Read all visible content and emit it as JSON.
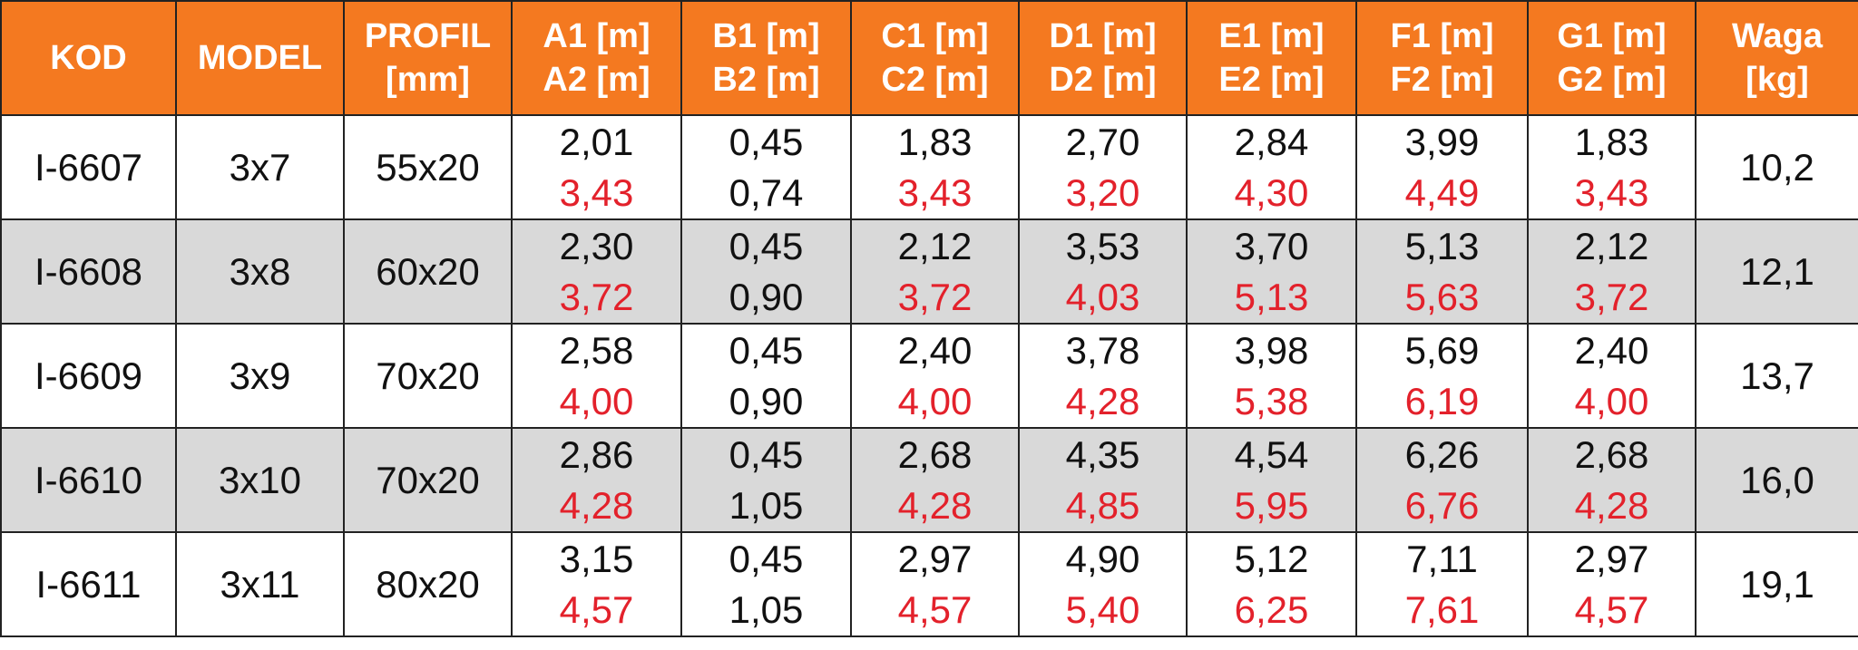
{
  "table": {
    "header": [
      [
        "KOD"
      ],
      [
        "MODEL"
      ],
      [
        "PROFIL",
        "[mm]"
      ],
      [
        "A1 [m]",
        "A2 [m]"
      ],
      [
        "B1 [m]",
        "B2 [m]"
      ],
      [
        "C1 [m]",
        "C2 [m]"
      ],
      [
        "D1 [m]",
        "D2 [m]"
      ],
      [
        "E1 [m]",
        "E2 [m]"
      ],
      [
        "F1 [m]",
        "F2 [m]"
      ],
      [
        "G1 [m]",
        "G2 [m]"
      ],
      [
        "Waga",
        "[kg]"
      ]
    ],
    "rows": [
      {
        "kod": "I-6607",
        "model": "3x7",
        "profil": "55x20",
        "dims": [
          [
            "2,01",
            "3,43"
          ],
          [
            "0,45",
            "0,74"
          ],
          [
            "1,83",
            "3,43"
          ],
          [
            "2,70",
            "3,20"
          ],
          [
            "2,84",
            "4,30"
          ],
          [
            "3,99",
            "4,49"
          ],
          [
            "1,83",
            "3,43"
          ]
        ],
        "waga": "10,2"
      },
      {
        "kod": "I-6608",
        "model": "3x8",
        "profil": "60x20",
        "dims": [
          [
            "2,30",
            "3,72"
          ],
          [
            "0,45",
            "0,90"
          ],
          [
            "2,12",
            "3,72"
          ],
          [
            "3,53",
            "4,03"
          ],
          [
            "3,70",
            "5,13"
          ],
          [
            "5,13",
            "5,63"
          ],
          [
            "2,12",
            "3,72"
          ]
        ],
        "waga": "12,1"
      },
      {
        "kod": "I-6609",
        "model": "3x9",
        "profil": "70x20",
        "dims": [
          [
            "2,58",
            "4,00"
          ],
          [
            "0,45",
            "0,90"
          ],
          [
            "2,40",
            "4,00"
          ],
          [
            "3,78",
            "4,28"
          ],
          [
            "3,98",
            "5,38"
          ],
          [
            "5,69",
            "6,19"
          ],
          [
            "2,40",
            "4,00"
          ]
        ],
        "waga": "13,7"
      },
      {
        "kod": "I-6610",
        "model": "3x10",
        "profil": "70x20",
        "dims": [
          [
            "2,86",
            "4,28"
          ],
          [
            "0,45",
            "1,05"
          ],
          [
            "2,68",
            "4,28"
          ],
          [
            "4,35",
            "4,85"
          ],
          [
            "4,54",
            "5,95"
          ],
          [
            "6,26",
            "6,76"
          ],
          [
            "2,68",
            "4,28"
          ]
        ],
        "waga": "16,0"
      },
      {
        "kod": "I-6611",
        "model": "3x11",
        "profil": "80x20",
        "dims": [
          [
            "3,15",
            "4,57"
          ],
          [
            "0,45",
            "1,05"
          ],
          [
            "2,97",
            "4,57"
          ],
          [
            "4,90",
            "5,40"
          ],
          [
            "5,12",
            "6,25"
          ],
          [
            "7,11",
            "7,61"
          ],
          [
            "2,97",
            "4,57"
          ]
        ],
        "waga": "19,1"
      }
    ]
  }
}
